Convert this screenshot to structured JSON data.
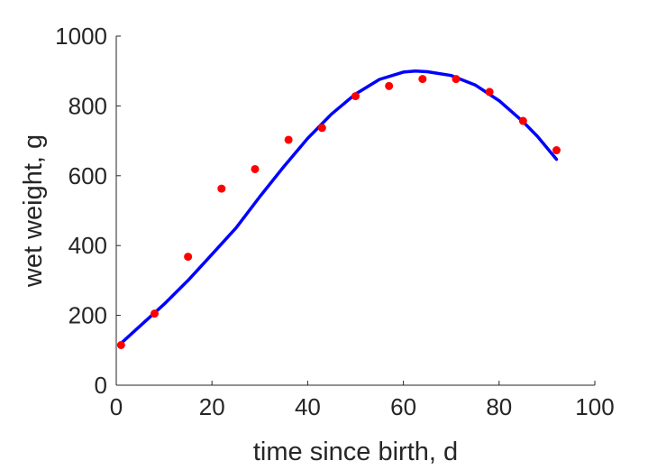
{
  "chart_data": {
    "type": "scatter",
    "title": "",
    "xlabel": "time since birth, d",
    "ylabel": "wet weight, g",
    "xlim": [
      0,
      100
    ],
    "ylim": [
      0,
      1000
    ],
    "xticks": [
      0,
      20,
      40,
      60,
      80,
      100
    ],
    "yticks": [
      0,
      200,
      400,
      600,
      800,
      1000
    ],
    "grid": false,
    "series": [
      {
        "type": "scatter",
        "color": "#ff0000",
        "points": [
          {
            "x": 1,
            "y": 115
          },
          {
            "x": 8,
            "y": 205
          },
          {
            "x": 15,
            "y": 368
          },
          {
            "x": 22,
            "y": 563
          },
          {
            "x": 29,
            "y": 619
          },
          {
            "x": 36,
            "y": 703
          },
          {
            "x": 43,
            "y": 737
          },
          {
            "x": 50,
            "y": 828
          },
          {
            "x": 57,
            "y": 857
          },
          {
            "x": 64,
            "y": 877
          },
          {
            "x": 71,
            "y": 877
          },
          {
            "x": 78,
            "y": 840
          },
          {
            "x": 85,
            "y": 757
          },
          {
            "x": 92,
            "y": 673
          }
        ]
      },
      {
        "type": "line",
        "color": "#0000ff",
        "points": [
          {
            "x": 1,
            "y": 120
          },
          {
            "x": 5,
            "y": 170
          },
          {
            "x": 10,
            "y": 232
          },
          {
            "x": 15,
            "y": 300
          },
          {
            "x": 20,
            "y": 375
          },
          {
            "x": 25,
            "y": 450
          },
          {
            "x": 30,
            "y": 540
          },
          {
            "x": 35,
            "y": 626
          },
          {
            "x": 40,
            "y": 707
          },
          {
            "x": 45,
            "y": 777
          },
          {
            "x": 50,
            "y": 834
          },
          {
            "x": 55,
            "y": 876
          },
          {
            "x": 60,
            "y": 897
          },
          {
            "x": 62.5,
            "y": 900
          },
          {
            "x": 65,
            "y": 898
          },
          {
            "x": 70,
            "y": 887
          },
          {
            "x": 75,
            "y": 860
          },
          {
            "x": 80,
            "y": 815
          },
          {
            "x": 85,
            "y": 755
          },
          {
            "x": 88,
            "y": 713
          },
          {
            "x": 92,
            "y": 647
          }
        ]
      }
    ]
  }
}
